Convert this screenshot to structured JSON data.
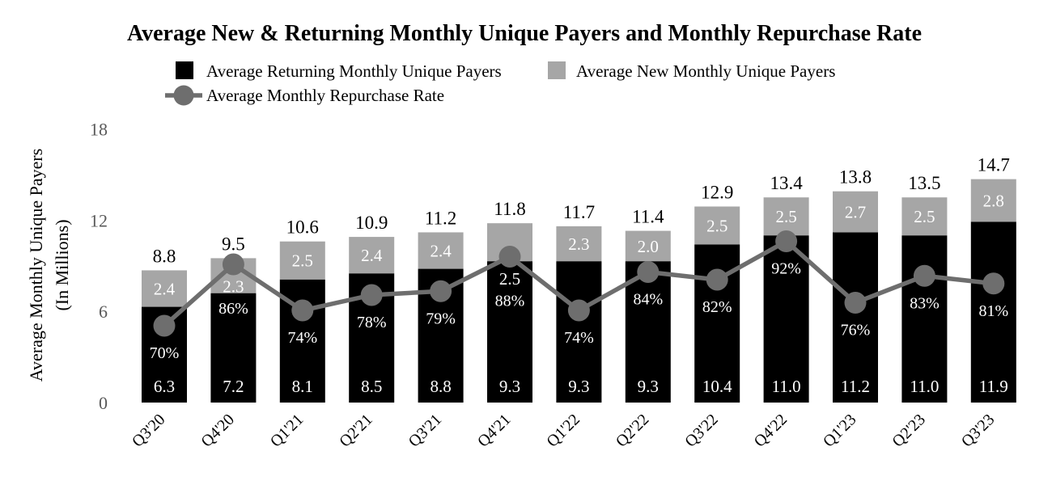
{
  "title": "Average New & Returning Monthly Unique Payers and Monthly Repurchase Rate",
  "legend": {
    "returning": "Average Returning Monthly Unique Payers",
    "new": "Average New Monthly Unique Payers",
    "rate": "Average Monthly Repurchase Rate"
  },
  "y_axis": {
    "title_line1": "Average Monthly Unique Payers",
    "title_line2": "(In Millions)",
    "ticks": [
      0,
      6,
      12,
      18
    ]
  },
  "colors": {
    "returning_bar": "#000000",
    "new_bar": "#a6a6a6",
    "rate_line": "#6e6e6e",
    "axis_tick_text": "#595959",
    "label_on_bar": "#ffffff",
    "text": "#000000"
  },
  "chart_data": {
    "type": "bar",
    "stacked": true,
    "overlay": "line",
    "title": "Average New & Returning Monthly Unique Payers and Monthly Repurchase Rate",
    "categories": [
      "Q3'20",
      "Q4'20",
      "Q1'21",
      "Q2'21",
      "Q3'21",
      "Q4'21",
      "Q1'22",
      "Q2'22",
      "Q3'22",
      "Q4'22",
      "Q1'23",
      "Q2'23",
      "Q3'23"
    ],
    "series": [
      {
        "name": "Average Returning Monthly Unique Payers",
        "color": "#000000",
        "values": [
          6.3,
          7.2,
          8.1,
          8.5,
          8.8,
          9.3,
          9.3,
          9.3,
          10.4,
          11.0,
          11.2,
          11.0,
          11.9
        ]
      },
      {
        "name": "Average New Monthly Unique Payers",
        "color": "#a6a6a6",
        "values": [
          2.4,
          2.3,
          2.5,
          2.4,
          2.4,
          2.5,
          2.3,
          2.0,
          2.5,
          2.5,
          2.7,
          2.5,
          2.8
        ]
      }
    ],
    "bar_total_labels": [
      8.8,
      9.5,
      10.6,
      10.9,
      11.2,
      11.8,
      11.7,
      11.4,
      12.9,
      13.4,
      13.8,
      13.5,
      14.7
    ],
    "line_series": {
      "name": "Average Monthly Repurchase Rate",
      "color": "#6e6e6e",
      "unit": "%",
      "values": [
        70,
        86,
        74,
        78,
        79,
        88,
        74,
        84,
        82,
        92,
        76,
        83,
        81
      ]
    },
    "xlabel": "",
    "ylabel": "Average Monthly Unique Payers (In Millions)",
    "ylim": [
      0,
      18
    ],
    "grid": false,
    "legend_position": "top"
  }
}
